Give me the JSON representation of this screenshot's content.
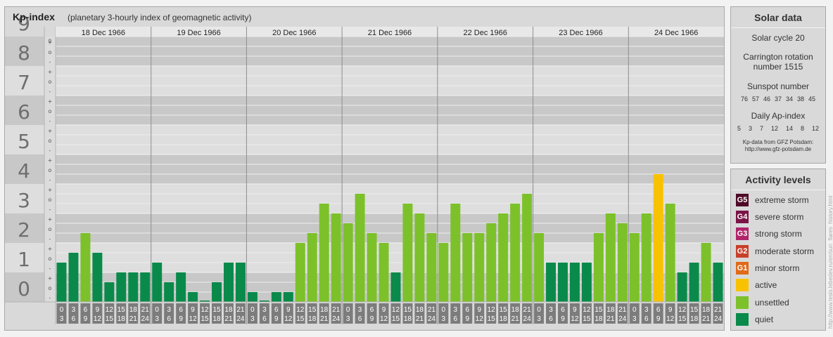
{
  "header": {
    "title": "Kp-index",
    "subtitle": "(planetary 3-hourly index of geomagnetic activity)"
  },
  "solar": {
    "title": "Solar data",
    "cycle": "Solar cycle 20",
    "carrington_line1": "Carrington rotation",
    "carrington_line2": "number 1515",
    "sunspot_title": "Sunspot number",
    "sunspot_values": [
      "76",
      "57",
      "46",
      "37",
      "34",
      "38",
      "45"
    ],
    "ap_title": "Daily Ap-index",
    "ap_values": [
      "5",
      "3",
      "7",
      "12",
      "14",
      "8",
      "12"
    ],
    "credit_line1": "Kp-data from GFZ Potsdam:",
    "credit_line2": "http://www.gfz-potsdam.de"
  },
  "levels": {
    "title": "Activity levels",
    "items": [
      {
        "badge": "G5",
        "label": "extreme storm",
        "color": "#4d0a26"
      },
      {
        "badge": "G4",
        "label": "severe storm",
        "color": "#7a1446"
      },
      {
        "badge": "G3",
        "label": "strong storm",
        "color": "#b0246a"
      },
      {
        "badge": "G2",
        "label": "moderate storm",
        "color": "#c8402a"
      },
      {
        "badge": "G1",
        "label": "minor storm",
        "color": "#e06a18"
      },
      {
        "badge": "",
        "label": "active",
        "color": "#f9c200"
      },
      {
        "badge": "",
        "label": "unsettled",
        "color": "#7cc12a"
      },
      {
        "badge": "",
        "label": "quiet",
        "color": "#0a8a4a"
      }
    ]
  },
  "watermark": "http://www.tesis.lebedev.ru/en/sun_flares_history.html",
  "chart_data": {
    "type": "bar",
    "title": "Kp-index",
    "subtitle": "(planetary 3-hourly index of geomagnetic activity)",
    "ylim": [
      0,
      9
    ],
    "y_ticks": [
      "0",
      "1",
      "2",
      "3",
      "4",
      "5",
      "6",
      "7",
      "8",
      "9"
    ],
    "y_subticks": [
      "-",
      "o",
      "+"
    ],
    "days": [
      "18 Dec 1966",
      "19 Dec 1966",
      "20 Dec 1966",
      "21 Dec 1966",
      "22 Dec 1966",
      "23 Dec 1966",
      "24 Dec 1966"
    ],
    "interval_labels": [
      [
        "0",
        "3"
      ],
      [
        "3",
        "6"
      ],
      [
        "6",
        "9"
      ],
      [
        "9",
        "12"
      ],
      [
        "12",
        "15"
      ],
      [
        "15",
        "18"
      ],
      [
        "18",
        "21"
      ],
      [
        "21",
        "24"
      ]
    ],
    "values": [
      [
        1.333,
        1.667,
        2.333,
        1.667,
        0.667,
        1,
        1,
        1
      ],
      [
        1.333,
        0.667,
        1,
        0.333,
        0,
        0.667,
        1.333,
        1.333
      ],
      [
        0.333,
        0,
        0.333,
        0.333,
        2,
        2.333,
        3.333,
        3
      ],
      [
        2.667,
        3.667,
        2.333,
        2,
        1,
        3.333,
        3,
        2.333
      ],
      [
        2,
        3.333,
        2.333,
        2.333,
        2.667,
        3,
        3.333,
        3.667
      ],
      [
        2.333,
        1.333,
        1.333,
        1.333,
        1.333,
        2.333,
        3,
        2.667
      ],
      [
        2.333,
        3,
        4.333,
        3.333,
        1,
        1.333,
        2,
        1.333
      ]
    ],
    "level_colors": {
      "quiet": "#0a8a4a",
      "unsettled": "#7cc12a",
      "active": "#f9c200",
      "G1": "#e06a18"
    },
    "grid": true
  }
}
